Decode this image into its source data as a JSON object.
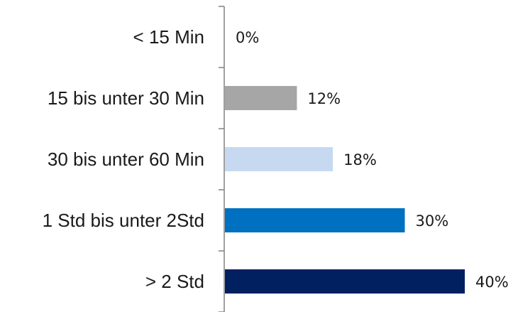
{
  "chart_data": {
    "type": "bar",
    "orientation": "horizontal",
    "categories": [
      "< 15 Min",
      "15 bis unter 30 Min",
      "30 bis unter 60 Min",
      "1 Std bis unter 2Std",
      "> 2 Std"
    ],
    "values": [
      0,
      12,
      18,
      30,
      40
    ],
    "value_labels": [
      "0%",
      "12%",
      "18%",
      "30%",
      "40%"
    ],
    "colors": [
      "#a6a6a6",
      "#a6a6a6",
      "#c6d9f0",
      "#0070c0",
      "#002060"
    ],
    "xlim": [
      0,
      40
    ],
    "grid": false,
    "legend": "none"
  }
}
